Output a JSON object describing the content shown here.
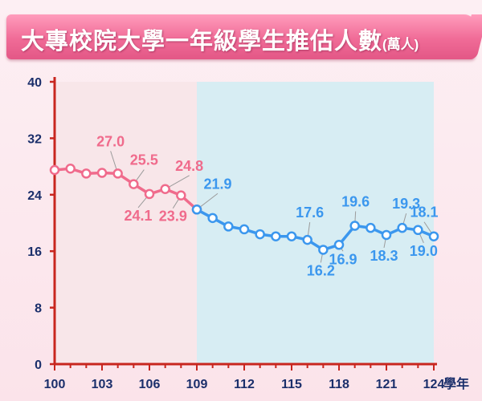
{
  "chart_data": {
    "type": "line",
    "title": "大專校院大學一年級學生推估人數",
    "title_unit": "(萬人)",
    "xlabel": "學年",
    "ylabel": "",
    "xlim": [
      100,
      124
    ],
    "ylim": [
      0,
      40
    ],
    "yticks": [
      0,
      8,
      16,
      24,
      32,
      40
    ],
    "xticks": [
      100,
      103,
      106,
      109,
      112,
      115,
      118,
      121,
      124
    ],
    "grid": false,
    "legend": "none",
    "colors": {
      "actual": "#f06b8c",
      "projected": "#3b97ee",
      "actual_region": "#f8e6e9",
      "projected_region": "#d7edf3",
      "axis": "#c8261f",
      "text": "#1b2f6b"
    },
    "series": [
      {
        "segment": "actual",
        "x": [
          100,
          101,
          102,
          103,
          104,
          105,
          106,
          107,
          108,
          109
        ],
        "y": [
          27.5,
          27.7,
          27.0,
          27.1,
          27.0,
          25.5,
          24.1,
          24.8,
          23.9,
          21.9
        ]
      },
      {
        "segment": "projected",
        "x": [
          109,
          110,
          111,
          112,
          113,
          114,
          115,
          116,
          117,
          118,
          119,
          120,
          121,
          122,
          123,
          124
        ],
        "y": [
          21.9,
          20.7,
          19.5,
          19.1,
          18.4,
          18.1,
          18.1,
          17.6,
          16.2,
          16.9,
          19.6,
          19.3,
          18.3,
          19.3,
          19.0,
          18.1
        ]
      }
    ],
    "annotations": [
      {
        "text": "27.0",
        "x": 104,
        "y": 27.0,
        "segment": "actual"
      },
      {
        "text": "25.5",
        "x": 105,
        "y": 25.5,
        "segment": "actual"
      },
      {
        "text": "24.1",
        "x": 106,
        "y": 24.1,
        "segment": "actual"
      },
      {
        "text": "24.8",
        "x": 107,
        "y": 24.8,
        "segment": "actual"
      },
      {
        "text": "23.9",
        "x": 108,
        "y": 23.9,
        "segment": "actual"
      },
      {
        "text": "21.9",
        "x": 109,
        "y": 21.9,
        "segment": "projected"
      },
      {
        "text": "17.6",
        "x": 116,
        "y": 17.6,
        "segment": "projected"
      },
      {
        "text": "16.2",
        "x": 117,
        "y": 16.2,
        "segment": "projected"
      },
      {
        "text": "16.9",
        "x": 118,
        "y": 16.9,
        "segment": "projected"
      },
      {
        "text": "19.6",
        "x": 119,
        "y": 19.6,
        "segment": "projected"
      },
      {
        "text": "18.3",
        "x": 121,
        "y": 18.3,
        "segment": "projected"
      },
      {
        "text": "19.3",
        "x": 122,
        "y": 19.3,
        "segment": "projected"
      },
      {
        "text": "19.0",
        "x": 123,
        "y": 19.0,
        "segment": "projected"
      },
      {
        "text": "18.1",
        "x": 124,
        "y": 18.1,
        "segment": "projected"
      }
    ]
  }
}
